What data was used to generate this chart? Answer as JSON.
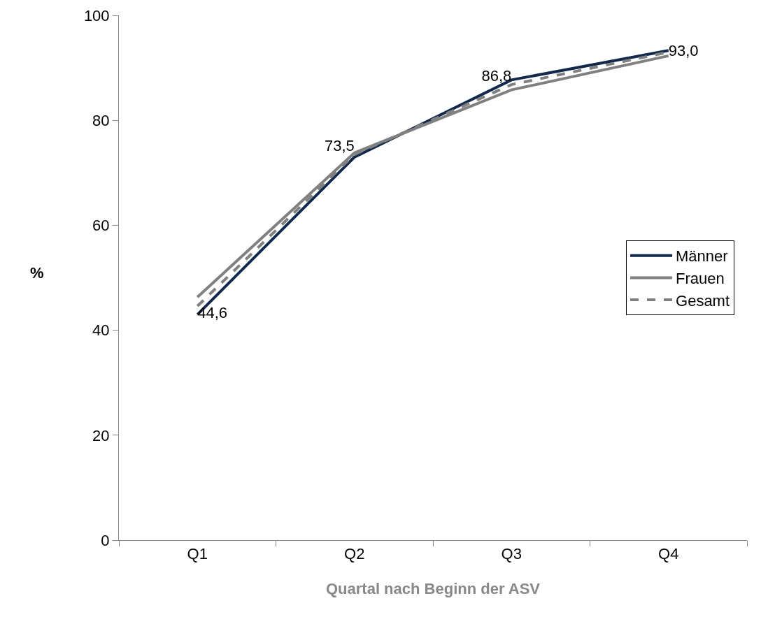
{
  "chart_data": {
    "type": "line",
    "xlabel": "Quartal nach Beginn der ASV",
    "ylabel": "%",
    "categories": [
      "Q1",
      "Q2",
      "Q3",
      "Q4"
    ],
    "series": [
      {
        "name": "Männer",
        "color": "#13294b",
        "values": [
          43.0,
          73.0,
          87.7,
          93.3
        ]
      },
      {
        "name": "Frauen",
        "color": "#808080",
        "values": [
          46.3,
          73.8,
          85.8,
          92.3
        ]
      },
      {
        "name": "Gesamt",
        "color": "#808080",
        "values": [
          44.6,
          73.5,
          86.8,
          93.0
        ],
        "line_style": "dashed",
        "value_labels": [
          "44,6",
          "73,5",
          "86,8",
          "93,0"
        ]
      }
    ],
    "ylim": [
      0,
      100
    ],
    "yticks": [
      0,
      20,
      40,
      60,
      80,
      100
    ],
    "grid": false,
    "legend": "right",
    "marker": "none",
    "line_style": "solid"
  }
}
